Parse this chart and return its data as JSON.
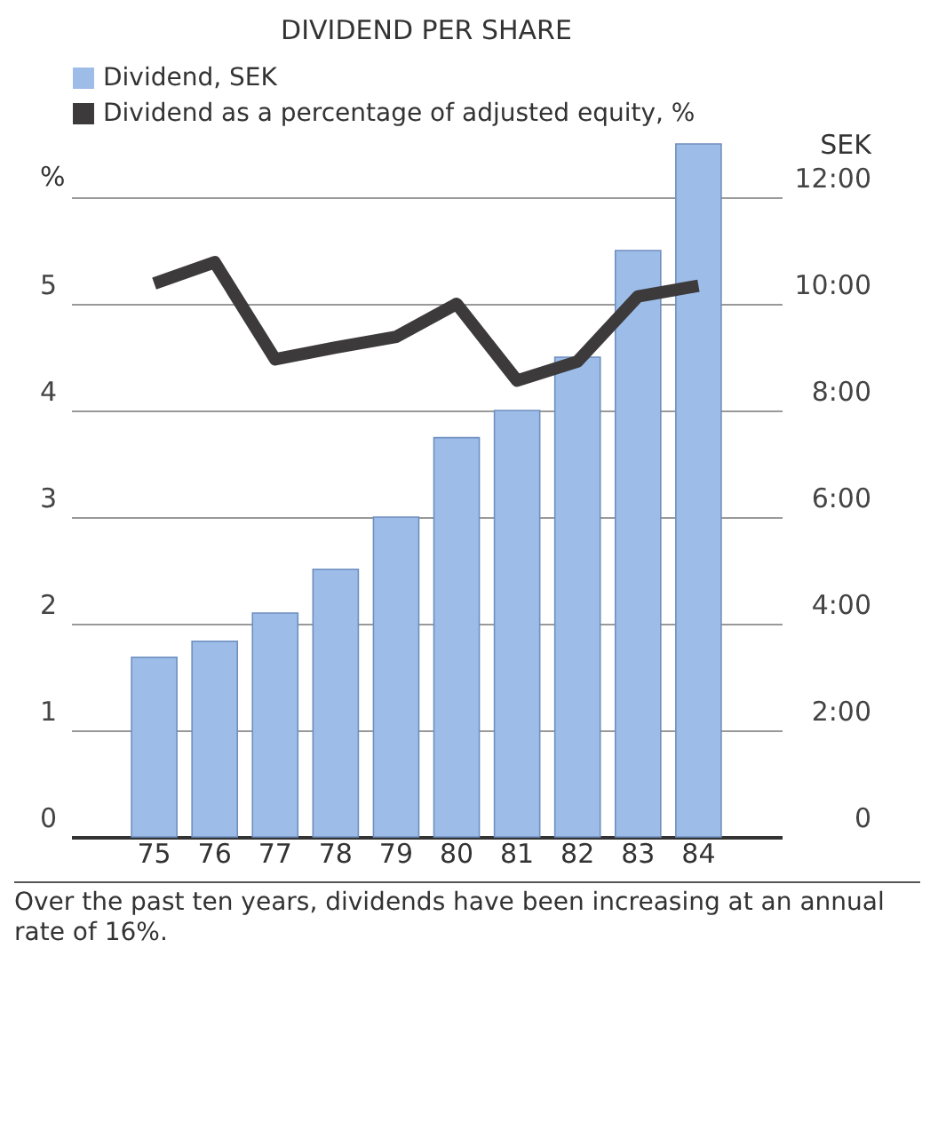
{
  "chart_data": {
    "type": "bar",
    "title": "DIVIDEND PER SHARE",
    "categories": [
      "75",
      "76",
      "77",
      "78",
      "79",
      "80",
      "81",
      "82",
      "83",
      "84"
    ],
    "series": [
      {
        "name": "Dividend, SEK",
        "axis": "y2",
        "color": "#9dbde8",
        "values": [
          3.37,
          3.67,
          4.2,
          5.02,
          6.0,
          7.49,
          8.0,
          9.0,
          11.0,
          13.0
        ]
      },
      {
        "name": "Dividend as a percentage of adjusted equity, %",
        "type": "line",
        "color": "#3d3a3c",
        "values": [
          5.19,
          5.39,
          4.48,
          4.59,
          4.69,
          5.0,
          4.28,
          4.46,
          5.07,
          5.17
        ]
      }
    ],
    "ylabel": "%",
    "ylim": [
      0,
      6.5
    ],
    "yticks": [
      0,
      1,
      2,
      3,
      4,
      5
    ],
    "y2label": "SEK",
    "y2lim": [
      0,
      13
    ],
    "y2ticks": [
      0,
      {
        "value": 2,
        "label": "2:00"
      },
      {
        "value": 4,
        "label": "4:00"
      },
      {
        "value": 6,
        "label": "6:00"
      },
      {
        "value": 8,
        "label": "8:00"
      },
      {
        "value": 10,
        "label": "10:00"
      },
      {
        "value": 12,
        "label": "12:00"
      }
    ],
    "grid": true,
    "legend": "top left",
    "annotations": [
      "Over the past ten years, dividends have been increasing at an annual rate of 16%."
    ]
  }
}
